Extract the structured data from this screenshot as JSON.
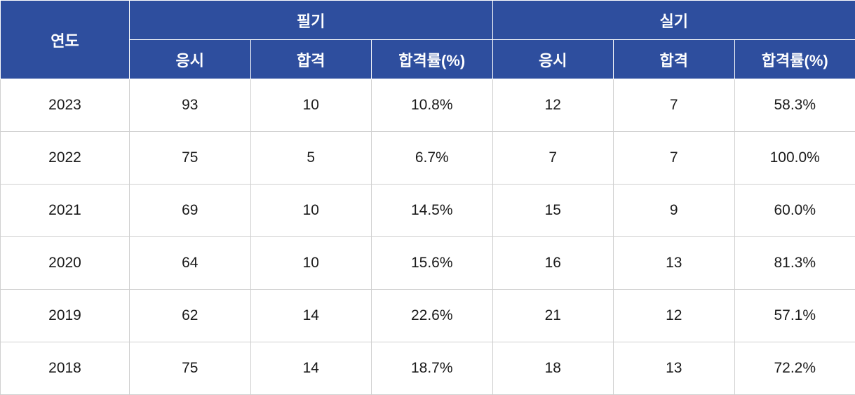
{
  "table": {
    "header_bg_color": "#2e4e9e",
    "header_text_color": "#ffffff",
    "cell_bg_color": "#ffffff",
    "cell_text_color": "#1a1a1a",
    "border_color": "#d0d0d0",
    "header_border_color": "#ffffff",
    "header_fontsize": 22,
    "cell_fontsize": 21,
    "headers": {
      "year": "연도",
      "written": "필기",
      "practical": "실기",
      "applicants": "응시",
      "passed": "합격",
      "pass_rate": "합격률(%)"
    },
    "rows": [
      {
        "year": "2023",
        "written_applicants": "93",
        "written_passed": "10",
        "written_rate": "10.8%",
        "practical_applicants": "12",
        "practical_passed": "7",
        "practical_rate": "58.3%"
      },
      {
        "year": "2022",
        "written_applicants": "75",
        "written_passed": "5",
        "written_rate": "6.7%",
        "practical_applicants": "7",
        "practical_passed": "7",
        "practical_rate": "100.0%"
      },
      {
        "year": "2021",
        "written_applicants": "69",
        "written_passed": "10",
        "written_rate": "14.5%",
        "practical_applicants": "15",
        "practical_passed": "9",
        "practical_rate": "60.0%"
      },
      {
        "year": "2020",
        "written_applicants": "64",
        "written_passed": "10",
        "written_rate": "15.6%",
        "practical_applicants": "16",
        "practical_passed": "13",
        "practical_rate": "81.3%"
      },
      {
        "year": "2019",
        "written_applicants": "62",
        "written_passed": "14",
        "written_rate": "22.6%",
        "practical_applicants": "21",
        "practical_passed": "12",
        "practical_rate": "57.1%"
      },
      {
        "year": "2018",
        "written_applicants": "75",
        "written_passed": "14",
        "written_rate": "18.7%",
        "practical_applicants": "18",
        "practical_passed": "13",
        "practical_rate": "72.2%"
      }
    ]
  }
}
